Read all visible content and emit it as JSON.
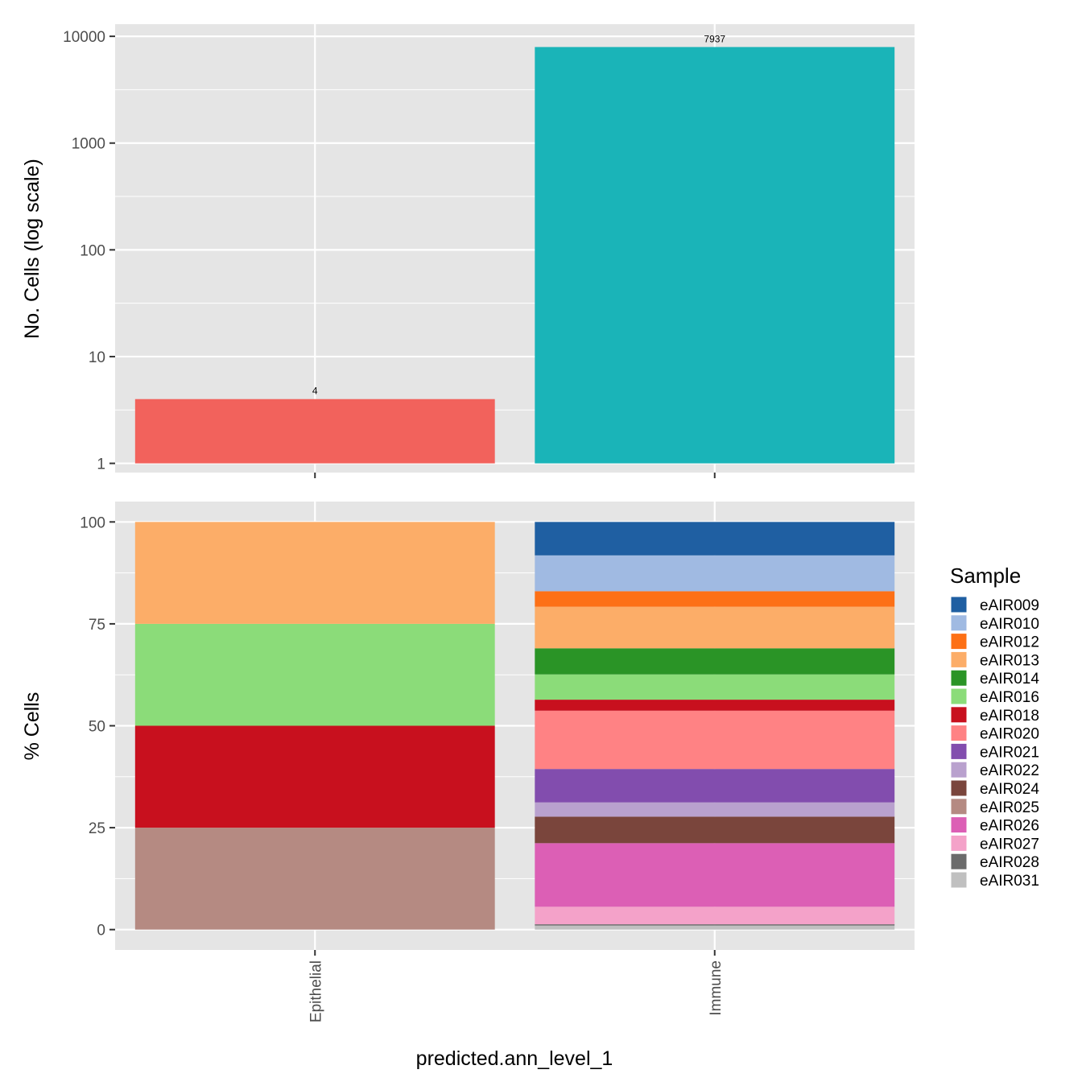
{
  "chart_data": [
    {
      "type": "bar",
      "scale": "log10",
      "categories": [
        "Epithelial",
        "Immune"
      ],
      "values": [
        4,
        7937
      ],
      "data_labels": [
        "4",
        "7937"
      ],
      "colors": [
        "#F2625C",
        "#1AB4B8"
      ],
      "ylabel": "No. Cells (log scale)",
      "yticks": [
        1,
        10,
        100,
        1000,
        10000
      ],
      "ytick_labels": [
        "1",
        "10",
        "100",
        "1000",
        "10000"
      ],
      "ylim": [
        0.82,
        13000
      ]
    },
    {
      "type": "bar",
      "stacked": true,
      "categories": [
        "Epithelial",
        "Immune"
      ],
      "xlabel": "predicted.ann_level_1",
      "ylabel": "% Cells",
      "ylim": [
        -5,
        105
      ],
      "yticks": [
        0,
        25,
        50,
        75,
        100
      ],
      "ytick_labels": [
        "0",
        "25",
        "50",
        "75",
        "100"
      ],
      "series": [
        {
          "name": "eAIR009",
          "color": "#1F5FA2",
          "values": [
            0,
            8.2
          ]
        },
        {
          "name": "eAIR010",
          "color": "#A0BAE2",
          "values": [
            0,
            8.8
          ]
        },
        {
          "name": "eAIR012",
          "color": "#FD7016",
          "values": [
            0,
            3.8
          ]
        },
        {
          "name": "eAIR013",
          "color": "#FCAD68",
          "values": [
            25,
            10.2
          ]
        },
        {
          "name": "eAIR014",
          "color": "#2A9426",
          "values": [
            0,
            6.4
          ]
        },
        {
          "name": "eAIR016",
          "color": "#8BDC79",
          "values": [
            25,
            6.2
          ]
        },
        {
          "name": "eAIR018",
          "color": "#C8101E",
          "values": [
            25,
            2.7
          ]
        },
        {
          "name": "eAIR020",
          "color": "#FF8284",
          "values": [
            0,
            14.3
          ]
        },
        {
          "name": "eAIR021",
          "color": "#824DAE",
          "values": [
            0,
            8.2
          ]
        },
        {
          "name": "eAIR022",
          "color": "#B9A1CE",
          "values": [
            0,
            3.5
          ]
        },
        {
          "name": "eAIR024",
          "color": "#7A453C",
          "values": [
            0,
            6.5
          ]
        },
        {
          "name": "eAIR025",
          "color": "#B58A82",
          "values": [
            25,
            0
          ]
        },
        {
          "name": "eAIR026",
          "color": "#DC5FB5",
          "values": [
            0,
            15.6
          ]
        },
        {
          "name": "eAIR027",
          "color": "#F4A2C9",
          "values": [
            0,
            4.3
          ]
        },
        {
          "name": "eAIR028",
          "color": "#6B6B6B",
          "values": [
            0,
            0.3
          ]
        },
        {
          "name": "eAIR031",
          "color": "#C0C0C0",
          "values": [
            0,
            1.0
          ]
        }
      ],
      "legend": {
        "title": "Sample",
        "position": "right"
      }
    }
  ]
}
